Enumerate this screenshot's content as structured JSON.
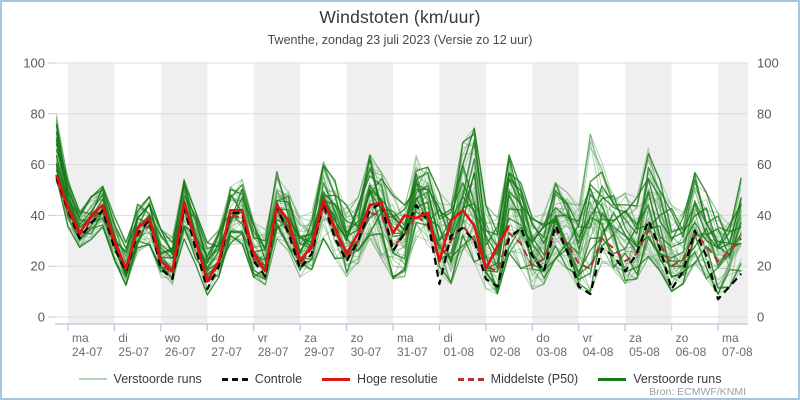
{
  "header": {
    "title": "Windstoten (km/uur)",
    "subtitle": "Twenthe, zondag 23 juli 2023 (Versie zo 12 uur)"
  },
  "source": {
    "label": "Bron: ECMWF/KNMI"
  },
  "colors": {
    "frame_border": "#a9c3e3",
    "band_gray": "#efefef",
    "grid": "#dcdcdc",
    "axis": "#b9c6d8",
    "tick_label": "#6b6b6b",
    "ens_light": "#4f9e4f",
    "ens_dark": "#177917",
    "control": "#000000",
    "hires": "#e11212",
    "p50": "#b23333"
  },
  "axes": {
    "y_min": 0,
    "y_max": 100,
    "y_ticks": [
      0,
      20,
      40,
      60,
      80,
      100
    ],
    "x_days": [
      {
        "day": "ma",
        "date": "24-07"
      },
      {
        "day": "di",
        "date": "25-07"
      },
      {
        "day": "wo",
        "date": "26-07"
      },
      {
        "day": "do",
        "date": "27-07"
      },
      {
        "day": "vr",
        "date": "28-07"
      },
      {
        "day": "za",
        "date": "29-07"
      },
      {
        "day": "zo",
        "date": "30-07"
      },
      {
        "day": "ma",
        "date": "31-07"
      },
      {
        "day": "di",
        "date": "01-08"
      },
      {
        "day": "wo",
        "date": "02-08"
      },
      {
        "day": "do",
        "date": "03-08"
      },
      {
        "day": "vr",
        "date": "04-08"
      },
      {
        "day": "za",
        "date": "05-08"
      },
      {
        "day": "zo",
        "date": "06-08"
      },
      {
        "day": "ma",
        "date": "07-08"
      }
    ]
  },
  "legend": {
    "items": [
      {
        "label": "Verstoorde runs",
        "style": "ens-light"
      },
      {
        "label": "Controle",
        "style": "control"
      },
      {
        "label": "Hoge resolutie",
        "style": "hires"
      },
      {
        "label": "Middelste (P50)",
        "style": "p50"
      },
      {
        "label": "Verstoorde runs",
        "style": "ens-dark"
      }
    ]
  },
  "chart_data": {
    "type": "line",
    "title": "Windstoten (km/uur)",
    "ylabel": "km/uur",
    "ylim": [
      0,
      100
    ],
    "grid": true,
    "time_axis": "6-uurlijkse punten, dagen t.o.v. ma 24-07 00:00; start zo 23-07 18:00 (t=-0.25), einde ma 07-08 12:00 (t=14.5)",
    "t_start": -0.25,
    "t_step": 0.25,
    "series": [
      {
        "name": "Hoge resolutie",
        "style": "hires",
        "values": [
          56,
          43,
          33,
          40,
          44,
          30,
          19,
          35,
          39,
          22,
          18,
          45,
          30,
          14,
          22,
          42,
          42,
          25,
          18,
          44,
          38,
          22,
          28,
          46,
          35,
          25,
          33,
          44,
          45,
          33,
          40,
          39,
          41,
          22,
          38,
          42,
          36,
          19,
          28,
          36
        ]
      },
      {
        "name": "Controle",
        "style": "control",
        "values": [
          55,
          42,
          31,
          37,
          42,
          27,
          18,
          33,
          38,
          19,
          15,
          43,
          27,
          11,
          20,
          41,
          41,
          22,
          16,
          43,
          33,
          19,
          25,
          45,
          31,
          22,
          30,
          42,
          45,
          26,
          33,
          44,
          38,
          13,
          32,
          35,
          30,
          15,
          12,
          31,
          35,
          24,
          18,
          36,
          26,
          12,
          9,
          27,
          24,
          18,
          25,
          38,
          27,
          11,
          18,
          34,
          24,
          7,
          12,
          17
        ]
      },
      {
        "name": "Middelste (P50)",
        "style": "p50",
        "values": [
          54,
          41,
          32,
          38,
          43,
          28,
          20,
          32,
          36,
          21,
          17,
          42,
          28,
          13,
          21,
          40,
          39,
          23,
          18,
          42,
          34,
          21,
          27,
          43,
          32,
          23,
          30,
          41,
          40,
          28,
          32,
          40,
          36,
          22,
          30,
          36,
          30,
          20,
          18,
          33,
          29,
          20,
          23,
          34,
          29,
          21,
          19,
          31,
          27,
          22,
          25,
          34,
          29,
          20,
          23,
          33,
          28,
          22,
          26,
          31
        ]
      }
    ],
    "ensemble": {
      "name": "Verstoorde runs",
      "count_light": 34,
      "count_dark": 12,
      "seed": 11,
      "envelope_min": [
        50,
        35,
        27,
        30,
        35,
        22,
        12,
        25,
        28,
        15,
        12,
        30,
        20,
        8,
        14,
        28,
        28,
        15,
        12,
        30,
        25,
        15,
        18,
        30,
        22,
        15,
        20,
        30,
        22,
        14,
        15,
        28,
        26,
        16,
        12,
        25,
        20,
        10,
        8,
        24,
        18,
        10,
        12,
        22,
        18,
        10,
        8,
        20,
        16,
        12,
        14,
        22,
        17,
        9,
        12,
        20,
        14,
        8,
        11,
        17
      ],
      "envelope_max": [
        81,
        55,
        42,
        48,
        52,
        40,
        30,
        45,
        48,
        35,
        32,
        55,
        42,
        30,
        35,
        52,
        55,
        38,
        35,
        58,
        50,
        40,
        42,
        62,
        55,
        45,
        48,
        65,
        58,
        50,
        45,
        65,
        60,
        50,
        45,
        70,
        76,
        45,
        40,
        65,
        55,
        40,
        42,
        55,
        50,
        45,
        74,
        62,
        50,
        50,
        48,
        68,
        55,
        45,
        42,
        58,
        50,
        42,
        38,
        56
      ]
    }
  }
}
